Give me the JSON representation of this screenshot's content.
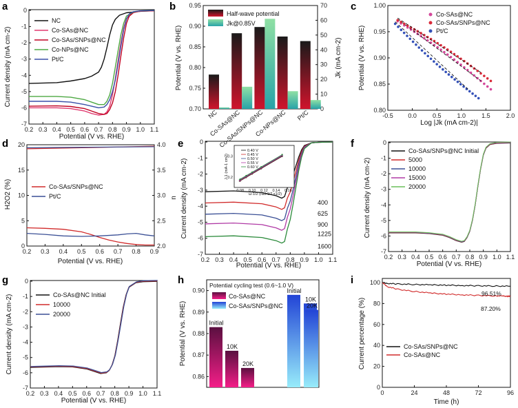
{
  "chart_data": [
    {
      "id": "a",
      "type": "line",
      "xlabel": "Potential (V vs. RHE)",
      "ylabel": "Current density (mA cm-2)",
      "xlim": [
        0.2,
        1.1
      ],
      "ylim": [
        -7,
        0
      ],
      "xticks": [
        "0.2",
        "0.3",
        "0.4",
        "0.5",
        "0.6",
        "0.7",
        "0.8",
        "0.9",
        "1.0",
        "1.1"
      ],
      "yticks": [
        "0",
        "-1",
        "-2",
        "-3",
        "-4",
        "-5",
        "-6",
        "-7"
      ],
      "series": [
        {
          "name": "NC",
          "color": "#111111",
          "x": [
            0.2,
            0.4,
            0.5,
            0.6,
            0.65,
            0.7,
            0.72,
            0.74,
            0.76,
            0.78,
            0.8,
            0.82,
            0.85,
            0.9,
            1.0,
            1.1
          ],
          "y": [
            -4.5,
            -4.45,
            -4.35,
            -4.2,
            -4.05,
            -3.8,
            -3.5,
            -3.0,
            -2.3,
            -1.5,
            -0.9,
            -0.55,
            -0.3,
            -0.15,
            -0.06,
            -0.02
          ]
        },
        {
          "name": "Co-SAs@NC",
          "color": "#e0386f",
          "x": [
            0.2,
            0.4,
            0.5,
            0.6,
            0.65,
            0.7,
            0.74,
            0.76,
            0.78,
            0.8,
            0.82,
            0.84,
            0.86,
            0.88,
            0.9,
            0.95,
            1.0,
            1.1
          ],
          "y": [
            -6.0,
            -6.0,
            -6.05,
            -6.2,
            -6.35,
            -6.45,
            -6.4,
            -6.25,
            -5.9,
            -5.2,
            -4.2,
            -3.1,
            -2.0,
            -1.1,
            -0.5,
            -0.15,
            -0.05,
            -0.02
          ]
        },
        {
          "name": "Co-SAs/SNPs@NC",
          "color": "#c00020",
          "x": [
            0.2,
            0.4,
            0.5,
            0.6,
            0.65,
            0.7,
            0.74,
            0.76,
            0.78,
            0.8,
            0.82,
            0.84,
            0.86,
            0.88,
            0.9,
            0.92,
            0.95,
            1.0,
            1.1
          ],
          "y": [
            -5.9,
            -5.88,
            -5.92,
            -6.05,
            -6.2,
            -6.35,
            -6.4,
            -6.35,
            -6.1,
            -5.7,
            -5.0,
            -4.0,
            -2.8,
            -1.7,
            -0.8,
            -0.35,
            -0.12,
            -0.04,
            -0.02
          ]
        },
        {
          "name": "Co-NPs@NC",
          "color": "#4da842",
          "x": [
            0.2,
            0.4,
            0.5,
            0.6,
            0.65,
            0.7,
            0.74,
            0.76,
            0.78,
            0.8,
            0.82,
            0.84,
            0.86,
            0.88,
            0.9,
            0.95,
            1.0,
            1.1
          ],
          "y": [
            -5.3,
            -5.3,
            -5.35,
            -5.5,
            -5.65,
            -5.8,
            -5.8,
            -5.6,
            -5.2,
            -4.5,
            -3.5,
            -2.5,
            -1.5,
            -0.8,
            -0.35,
            -0.1,
            -0.03,
            -0.01
          ]
        },
        {
          "name": "Pt/C",
          "color": "#3a4fa8",
          "x": [
            0.2,
            0.4,
            0.5,
            0.6,
            0.65,
            0.7,
            0.74,
            0.76,
            0.78,
            0.8,
            0.82,
            0.84,
            0.86,
            0.88,
            0.9,
            0.92,
            0.95,
            1.0,
            1.1
          ],
          "y": [
            -5.6,
            -5.6,
            -5.65,
            -5.8,
            -5.9,
            -6.0,
            -5.95,
            -5.8,
            -5.5,
            -5.0,
            -4.3,
            -3.3,
            -2.2,
            -1.2,
            -0.55,
            -0.22,
            -0.08,
            -0.03,
            -0.01
          ]
        }
      ],
      "legend": "top-left"
    },
    {
      "id": "b",
      "type": "bar",
      "categories": [
        "NC",
        "Co-SAs@NC",
        "Co-SAs/SNPs@NC",
        "Co-NPs@NC",
        "Pt/C"
      ],
      "series": [
        {
          "name": "Half-wave potential",
          "axis": "left",
          "values": [
            0.783,
            0.883,
            0.898,
            0.875,
            0.864
          ],
          "color_top": "#222222",
          "color_bottom": "#d0142c"
        },
        {
          "name": "Jk@0.85V",
          "axis": "right",
          "values": [
            1,
            15,
            61,
            12,
            6
          ],
          "color_top": "#7fd6a0",
          "color_bottom": "#2fa7a6"
        }
      ],
      "ylabel": "Potential (V vs. RHE)",
      "y2label": "Jk (mA cm-2)",
      "ylim": [
        0.7,
        0.95
      ],
      "y2lim": [
        0,
        70
      ],
      "yticks": [
        "0.70",
        "0.75",
        "0.80",
        "0.85",
        "0.90",
        "0.95"
      ],
      "y2ticks": [
        "0",
        "10",
        "20",
        "30",
        "40",
        "50",
        "60",
        "70"
      ],
      "legend": "top-left"
    },
    {
      "id": "c",
      "type": "scatter",
      "xlabel": "Log |Jk (mA cm-2)|",
      "ylabel": "Potential (V vs. RHE)",
      "xlim": [
        -0.5,
        2.0
      ],
      "ylim": [
        0.8,
        1.0
      ],
      "xticks": [
        "-0.5",
        "0.0",
        "0.5",
        "1.0",
        "1.5",
        "2.0"
      ],
      "yticks": [
        "0.80",
        "0.85",
        "0.90",
        "0.95",
        "1.00"
      ],
      "series": [
        {
          "name": "Co-SAs@NC",
          "color": "#d4479a",
          "x": [
            -0.3,
            1.6
          ],
          "y": [
            0.97,
            0.84
          ]
        },
        {
          "name": "Co-SAs/SNPs@NC",
          "color": "#d92b3a",
          "x": [
            -0.3,
            1.6
          ],
          "y": [
            0.972,
            0.856
          ]
        },
        {
          "name": "Pt/C",
          "color": "#3350b8",
          "x": [
            -0.35,
            1.35
          ],
          "y": [
            0.965,
            0.823
          ]
        }
      ],
      "legend": "top-right"
    },
    {
      "id": "d",
      "type": "line",
      "xlabel": "Potential (V vs. RHE)",
      "ylabel": "H2O2 (%)",
      "y2label": "n",
      "xlim": [
        0.2,
        0.9
      ],
      "ylim": [
        0,
        20
      ],
      "y2lim": [
        2.0,
        4.0
      ],
      "xticks": [
        "0.2",
        "0.3",
        "0.4",
        "0.5",
        "0.6",
        "0.7",
        "0.8",
        "0.9"
      ],
      "yticks": [
        "0",
        "5",
        "10",
        "15",
        "20"
      ],
      "y2ticks": [
        "2.0",
        "2.5",
        "3.0",
        "3.5",
        "4.0"
      ],
      "series": [
        {
          "name": "Co-SAs/SNPs@NC",
          "color": "#d12a2a",
          "x": [
            0.2,
            0.3,
            0.4,
            0.5,
            0.55,
            0.6,
            0.65,
            0.7,
            0.75,
            0.8,
            0.85,
            0.9
          ],
          "y": [
            3.6,
            3.5,
            3.3,
            2.8,
            2.3,
            1.7,
            1.2,
            0.8,
            0.5,
            0.3,
            0.2,
            0.2
          ],
          "axis": "left"
        },
        {
          "name": "Pt/C",
          "color": "#3a4f95",
          "x": [
            0.2,
            0.3,
            0.4,
            0.5,
            0.6,
            0.7,
            0.75,
            0.8,
            0.85,
            0.9
          ],
          "y": [
            2.5,
            2.3,
            2.0,
            1.9,
            2.0,
            2.2,
            2.4,
            2.5,
            2.2,
            2.0
          ],
          "axis": "left"
        },
        {
          "name": "n Co-SAs/SNPs@NC",
          "color": "#d12a2a",
          "x": [
            0.2,
            0.5,
            0.9
          ],
          "y": [
            3.92,
            3.94,
            3.97
          ],
          "axis": "right"
        },
        {
          "name": "n Pt/C",
          "color": "#3a4f95",
          "x": [
            0.2,
            0.5,
            0.9
          ],
          "y": [
            3.94,
            3.95,
            3.96
          ],
          "axis": "right"
        }
      ],
      "legend": "middle-left"
    },
    {
      "id": "e",
      "type": "line",
      "xlabel": "Potential (V vs. RHE)",
      "ylabel": "Current density (mA cm-2)",
      "xlim": [
        0.2,
        1.1
      ],
      "ylim": [
        -7,
        0
      ],
      "xticks": [
        "0.2",
        "0.3",
        "0.4",
        "0.5",
        "0.6",
        "0.7",
        "0.8",
        "0.9",
        "1.0",
        "1.1"
      ],
      "yticks": [
        "0",
        "-1",
        "-2",
        "-3",
        "-4",
        "-5",
        "-6",
        "-7"
      ],
      "series": [
        {
          "name": "400",
          "color": "#111111",
          "plateau": -3.1
        },
        {
          "name": "625",
          "color": "#d12a2a",
          "plateau": -3.8
        },
        {
          "name": "900",
          "color": "#3a4f95",
          "plateau": -4.5
        },
        {
          "name": "1225",
          "color": "#b03aa5",
          "plateau": -5.1
        },
        {
          "name": "1600",
          "color": "#2a8a3a",
          "plateau": -5.9
        }
      ],
      "inset": {
        "xlabel": "ω-1/2 (rad-1/2 s1/2)",
        "ylabel": "J-1 (mA-1 cm2)",
        "xticks": [
          "0.08",
          "0.10",
          "0.12",
          "0.14",
          "0.16"
        ],
        "yticks": [
          "0.2",
          "0.3"
        ],
        "lines": [
          "0.40 V",
          "0.45 V",
          "0.50 V",
          "0.55 V",
          "0.60 V"
        ]
      }
    },
    {
      "id": "f",
      "type": "line",
      "xlabel": "Potential (V vs. RHE)",
      "ylabel": "Current density (mA cm-2)",
      "xlim": [
        0.2,
        1.1
      ],
      "ylim": [
        -7,
        0
      ],
      "xticks": [
        "0.2",
        "0.3",
        "0.4",
        "0.5",
        "0.6",
        "0.7",
        "0.8",
        "0.9",
        "1.0",
        "1.1"
      ],
      "yticks": [
        "0",
        "-1",
        "-2",
        "-3",
        "-4",
        "-5",
        "-6",
        "-7"
      ],
      "series": [
        {
          "name": "Co-SAs/SNPs@NC Initial",
          "color": "#111111"
        },
        {
          "name": "5000",
          "color": "#d12a2a"
        },
        {
          "name": "10000",
          "color": "#3a4f95"
        },
        {
          "name": "15000",
          "color": "#b03aa5"
        },
        {
          "name": "20000",
          "color": "#6abf58"
        }
      ],
      "x": [
        0.2,
        0.4,
        0.5,
        0.6,
        0.65,
        0.7,
        0.74,
        0.76,
        0.78,
        0.8,
        0.82,
        0.84,
        0.86,
        0.88,
        0.9,
        0.92,
        0.95,
        1.0,
        1.1
      ],
      "y": [
        -5.8,
        -5.8,
        -5.85,
        -5.95,
        -6.1,
        -6.3,
        -6.4,
        -6.35,
        -6.1,
        -5.7,
        -5.0,
        -4.0,
        -2.8,
        -1.7,
        -0.8,
        -0.35,
        -0.12,
        -0.04,
        -0.02
      ]
    },
    {
      "id": "g",
      "type": "line",
      "xlabel": "Potential (V vs. RHE)",
      "ylabel": "Current density (mA cm-2)",
      "xlim": [
        0.2,
        1.1
      ],
      "ylim": [
        -7,
        0
      ],
      "xticks": [
        "0.2",
        "0.3",
        "0.4",
        "0.5",
        "0.6",
        "0.7",
        "0.8",
        "0.9",
        "1.0",
        "1.1"
      ],
      "yticks": [
        "0",
        "-1",
        "-2",
        "-3",
        "-4",
        "-5",
        "-6",
        "-7"
      ],
      "series": [
        {
          "name": "Co-SAs@NC Initial",
          "color": "#111111"
        },
        {
          "name": "10000",
          "color": "#d12a2a"
        },
        {
          "name": "20000",
          "color": "#3a4f95"
        }
      ],
      "x": [
        0.2,
        0.4,
        0.5,
        0.6,
        0.65,
        0.7,
        0.74,
        0.76,
        0.78,
        0.8,
        0.82,
        0.84,
        0.86,
        0.88,
        0.9,
        0.95,
        1.0,
        1.1
      ],
      "y": [
        -5.65,
        -5.6,
        -5.62,
        -5.75,
        -5.9,
        -6.05,
        -6.0,
        -5.85,
        -5.5,
        -4.9,
        -3.9,
        -2.8,
        -1.7,
        -0.9,
        -0.4,
        -0.1,
        -0.03,
        -0.01
      ]
    },
    {
      "id": "h",
      "type": "bar",
      "title": "Potential cycling test (0.6~1.0 V)",
      "ylabel": "Potential (V vs. RHE)",
      "ylim": [
        0.855,
        0.905
      ],
      "yticks": [
        "0.86",
        "0.87",
        "0.88",
        "0.89",
        "0.90"
      ],
      "groups": [
        {
          "name": "Co-SAs@NC",
          "color_top": "#6a1450",
          "color_bottom": "#f01a86",
          "categories": [
            "Initial",
            "10K",
            "20K"
          ],
          "values": [
            0.883,
            0.872,
            0.864
          ]
        },
        {
          "name": "Co-SAs/SNPs@NC",
          "color_top": "#2850d8",
          "color_bottom": "#8fe8f8",
          "categories": [
            "Initial",
            "10K",
            "20K"
          ],
          "values": [
            0.898,
            0.894,
            0.891
          ]
        }
      ],
      "legend": "top-left"
    },
    {
      "id": "i",
      "type": "line",
      "xlabel": "Time (h)",
      "ylabel": "Current percentage (%)",
      "xlim": [
        0,
        96
      ],
      "ylim": [
        0,
        100
      ],
      "xticks": [
        "0",
        "24",
        "48",
        "72",
        "96"
      ],
      "yticks": [
        "0",
        "20",
        "40",
        "60",
        "80",
        "100"
      ],
      "series": [
        {
          "name": "Co-SAs/SNPs@NC",
          "color": "#111111",
          "x": [
            0,
            4,
            12,
            24,
            36,
            48,
            60,
            72,
            84,
            96
          ],
          "y": [
            100,
            99.2,
            98.6,
            98.2,
            97.8,
            97.5,
            97.2,
            96.9,
            96.7,
            96.51
          ]
        },
        {
          "name": "Co-SAs@NC",
          "color": "#d12a2a",
          "x": [
            0,
            4,
            12,
            24,
            36,
            48,
            60,
            72,
            84,
            90,
            94,
            96
          ],
          "y": [
            100,
            96,
            93.5,
            91.5,
            90,
            89,
            88.3,
            87.7,
            87.3,
            87.2,
            86.8,
            87.2
          ]
        }
      ],
      "annotations": [
        "96.51%",
        "87.20%"
      ],
      "legend": "middle-left"
    }
  ],
  "labels": {
    "panels": [
      "a",
      "b",
      "c",
      "d",
      "e",
      "f",
      "g",
      "h",
      "i"
    ],
    "a_legend": [
      "NC",
      "Co-SAs@NC",
      "Co-SAs/SNPs@NC",
      "Co-NPs@NC",
      "Pt/C"
    ],
    "b_legend": [
      "Half-wave potential",
      "Jk@0.85V"
    ],
    "c_legend": [
      "Co-SAs@NC",
      "Co-SAs/SNPs@NC",
      "Pt/C"
    ],
    "d_legend": [
      "Co-SAs/SNPs@NC",
      "Pt/C"
    ],
    "e_labels": [
      "400",
      "625",
      "900",
      "1225",
      "1600"
    ],
    "f_legend": [
      "Co-SAs/SNPs@NC Initial",
      "5000",
      "10000",
      "15000",
      "20000"
    ],
    "g_legend": [
      "Co-SAs@NC Initial",
      "10000",
      "20000"
    ],
    "h_legend": [
      "Co-SAs@NC",
      "Co-SAs/SNPs@NC"
    ],
    "i_legend": [
      "Co-SAs/SNPs@NC",
      "Co-SAs@NC"
    ]
  }
}
